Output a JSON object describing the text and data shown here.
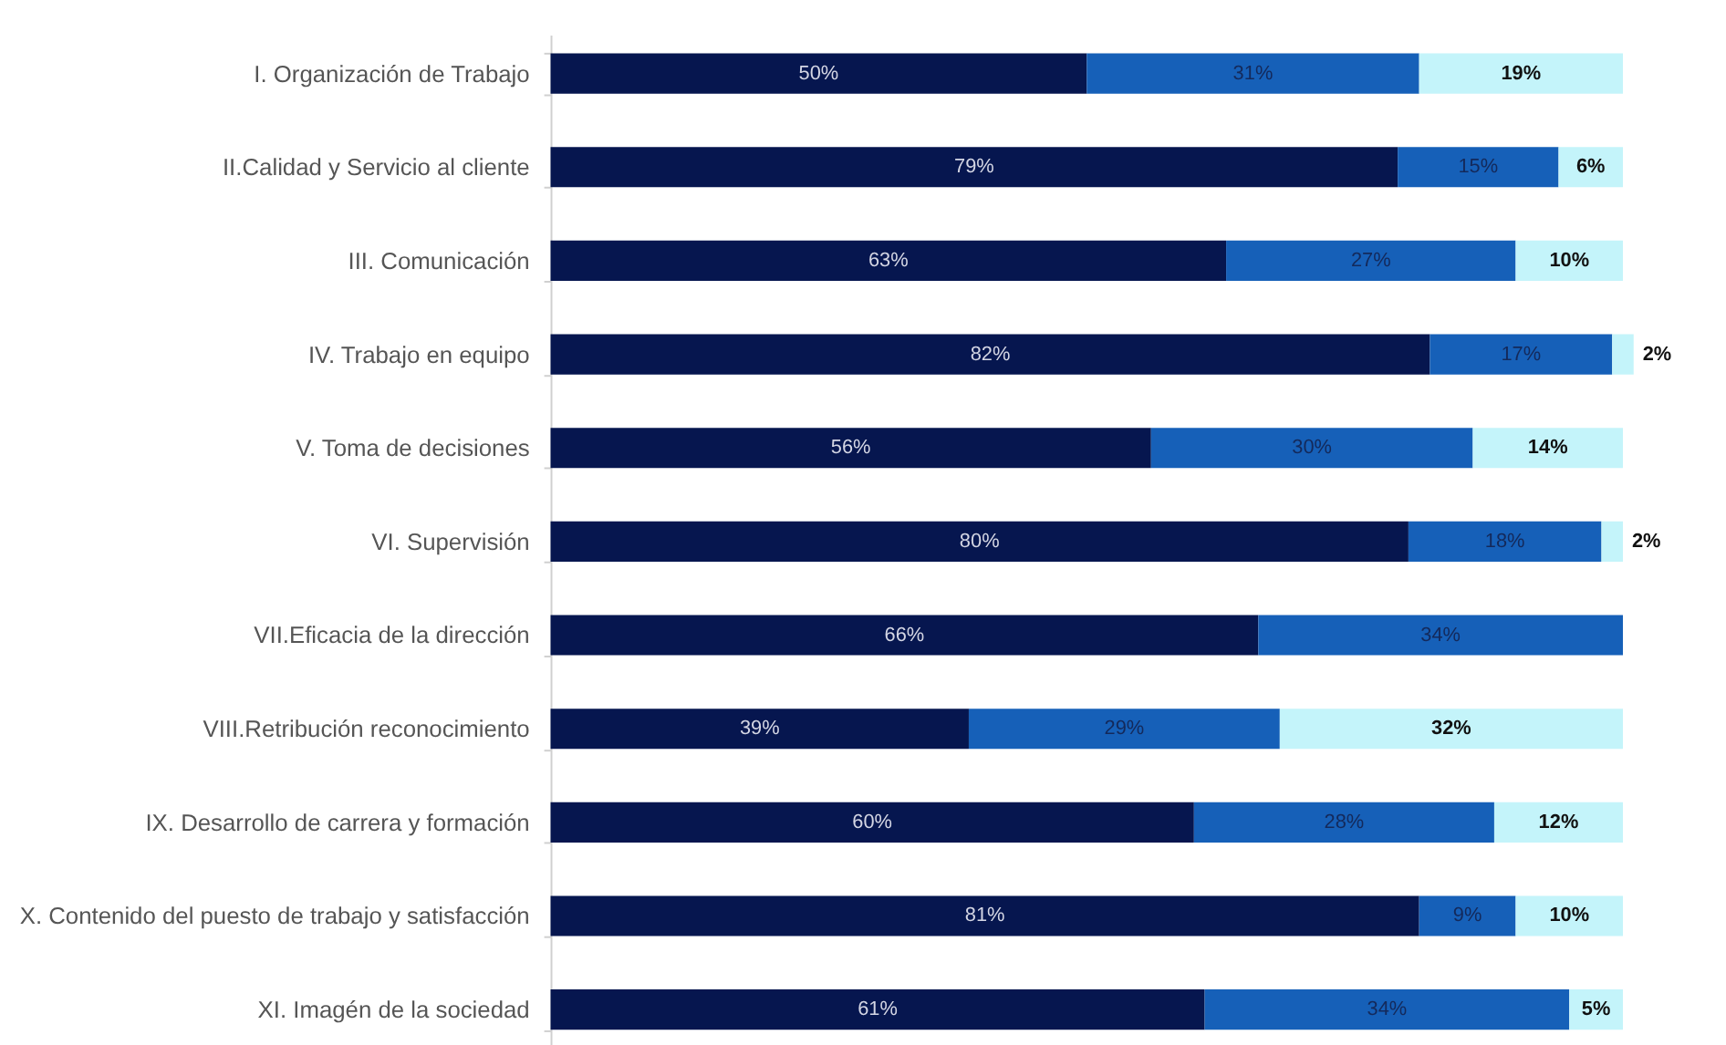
{
  "chart_data": {
    "type": "bar",
    "orientation": "horizontal",
    "stacked": true,
    "tick_labels": "y",
    "categories": [
      "I. Organización de Trabajo",
      "II.Calidad y Servicio al cliente",
      "III. Comunicación",
      "IV. Trabajo en equipo",
      "V. Toma de decisiones",
      "VI. Supervisión",
      "VII.Eficacia de la dirección",
      "VIII.Retribución reconocimiento",
      "IX. Desarrollo de carrera y formación",
      "X. Contenido del puesto de trabajo y satisfacción",
      "XI. Imagén de la sociedad"
    ],
    "series": [
      {
        "color": "#06164f",
        "values": [
          50,
          79,
          63,
          82,
          56,
          80,
          66,
          39,
          60,
          81,
          61
        ],
        "value_labels": [
          "50%",
          "79%",
          "63%",
          "82%",
          "56%",
          "80%",
          "66%",
          "39%",
          "60%",
          "81%",
          "61%"
        ]
      },
      {
        "color": "#1660b8",
        "values": [
          31,
          15,
          27,
          17,
          30,
          18,
          34,
          29,
          28,
          9,
          34
        ],
        "value_labels": [
          "31%",
          "15%",
          "27%",
          "17%",
          "30%",
          "18%",
          "34%",
          "29%",
          "28%",
          "9%",
          "34%"
        ]
      },
      {
        "color": "#c4f4fa",
        "values": [
          19,
          6,
          10,
          2,
          14,
          2,
          null,
          32,
          12,
          10,
          5
        ],
        "value_labels": [
          "19%",
          "6%",
          "10%",
          "2%",
          "14%",
          "2%",
          null,
          "32%",
          "12%",
          "10%",
          "5%"
        ]
      }
    ]
  }
}
